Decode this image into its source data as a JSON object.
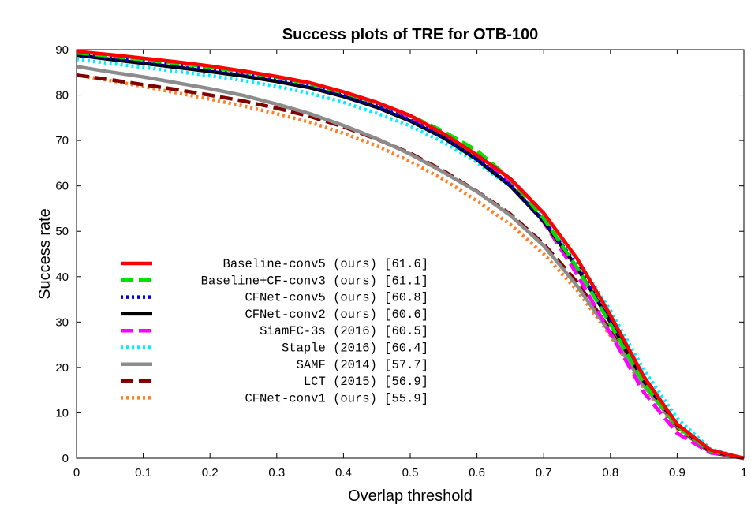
{
  "chart_data": {
    "type": "line",
    "title": "Success plots of TRE for OTB-100",
    "xlabel": "Overlap threshold",
    "ylabel": "Success rate",
    "xlim": [
      0,
      1
    ],
    "ylim": [
      0,
      90
    ],
    "x_ticks": [
      0,
      0.1,
      0.2,
      0.3,
      0.4,
      0.5,
      0.6,
      0.7,
      0.8,
      0.9,
      1
    ],
    "x_tick_labels": [
      "0",
      "0.1",
      "0.2",
      "0.3",
      "0.4",
      "0.5",
      "0.6",
      "0.7",
      "0.8",
      "0.9",
      "1"
    ],
    "y_ticks": [
      0,
      10,
      20,
      30,
      40,
      50,
      60,
      70,
      80,
      90
    ],
    "y_tick_labels": [
      "0",
      "10",
      "20",
      "30",
      "40",
      "50",
      "60",
      "70",
      "80",
      "90"
    ],
    "grid": false,
    "legend_position": "lower-left",
    "x": [
      0,
      0.05,
      0.1,
      0.15,
      0.2,
      0.25,
      0.3,
      0.35,
      0.4,
      0.45,
      0.5,
      0.55,
      0.6,
      0.65,
      0.7,
      0.75,
      0.8,
      0.85,
      0.9,
      0.95,
      1
    ],
    "series": [
      {
        "name": "Baseline-conv5 (ours) [61.6]",
        "color": "#ff0000",
        "dash": "solid",
        "values": [
          89.6,
          88.9,
          88.1,
          87.3,
          86.4,
          85.3,
          84.1,
          82.7,
          80.7,
          78.4,
          75.5,
          71.5,
          66.8,
          61.6,
          54.0,
          44.0,
          31.5,
          18.0,
          7.5,
          1.8,
          0
        ]
      },
      {
        "name": "Baseline+CF-conv3 (ours) [61.1]",
        "color": "#00e000",
        "dash": "dash",
        "values": [
          89.3,
          88.6,
          87.8,
          87.0,
          86.1,
          85.1,
          83.9,
          82.5,
          80.5,
          78.3,
          75.5,
          72.0,
          67.8,
          61.5,
          52.8,
          42.0,
          29.5,
          16.5,
          7.0,
          1.6,
          0
        ]
      },
      {
        "name": "CFNet-conv5 (ours) [60.8]",
        "color": "#0000e6",
        "dash": "dot",
        "values": [
          89.0,
          88.2,
          87.4,
          86.6,
          85.7,
          84.7,
          83.5,
          82.0,
          80.0,
          77.6,
          74.5,
          70.8,
          66.0,
          60.2,
          52.5,
          42.5,
          30.5,
          17.5,
          7.5,
          1.7,
          0
        ]
      },
      {
        "name": "CFNet-conv2 (ours) [60.6]",
        "color": "#000000",
        "dash": "solid",
        "values": [
          88.8,
          87.9,
          87.0,
          86.1,
          85.2,
          84.2,
          83.0,
          81.6,
          79.7,
          77.3,
          74.3,
          70.6,
          65.8,
          60.0,
          52.2,
          42.0,
          30.0,
          17.0,
          7.3,
          1.6,
          0
        ]
      },
      {
        "name": "SiamFC-3s (2016) [60.5]",
        "color": "#ff00ff",
        "dash": "dash",
        "values": [
          89.5,
          88.8,
          88.0,
          87.2,
          86.3,
          85.3,
          84.0,
          82.5,
          80.6,
          78.2,
          75.1,
          71.2,
          66.5,
          60.5,
          52.0,
          40.5,
          27.5,
          14.5,
          5.5,
          1.2,
          0
        ]
      },
      {
        "name": "Staple (2016) [60.4]",
        "color": "#00eeff",
        "dash": "dot",
        "values": [
          87.9,
          87.0,
          86.1,
          85.2,
          84.3,
          83.2,
          81.9,
          80.4,
          78.4,
          76.0,
          73.2,
          69.6,
          65.2,
          59.8,
          53.0,
          43.8,
          32.5,
          19.5,
          8.8,
          2.0,
          0
        ]
      },
      {
        "name": "SAMF (2014) [57.7]",
        "color": "#8c8c8c",
        "dash": "solid",
        "values": [
          86.3,
          85.1,
          84.0,
          82.7,
          81.4,
          79.9,
          78.0,
          75.9,
          73.3,
          70.4,
          67.0,
          63.0,
          58.7,
          53.5,
          46.8,
          38.0,
          27.5,
          16.0,
          7.0,
          1.5,
          0
        ]
      },
      {
        "name": "LCT (2015) [56.9]",
        "color": "#800000",
        "dash": "dash",
        "values": [
          84.4,
          83.4,
          82.3,
          81.2,
          80.0,
          78.7,
          77.1,
          75.3,
          73.0,
          70.3,
          67.2,
          63.3,
          58.8,
          53.8,
          47.2,
          38.8,
          28.2,
          16.2,
          6.8,
          1.3,
          0
        ]
      },
      {
        "name": "CFNet-conv1 (ours) [55.9]",
        "color": "#ff7f27",
        "dash": "dot",
        "values": [
          84.4,
          83.2,
          81.9,
          80.5,
          79.1,
          77.6,
          75.9,
          74.0,
          71.6,
          68.8,
          65.4,
          61.4,
          56.7,
          51.5,
          45.0,
          37.0,
          27.0,
          15.5,
          6.5,
          1.3,
          0
        ]
      }
    ]
  }
}
